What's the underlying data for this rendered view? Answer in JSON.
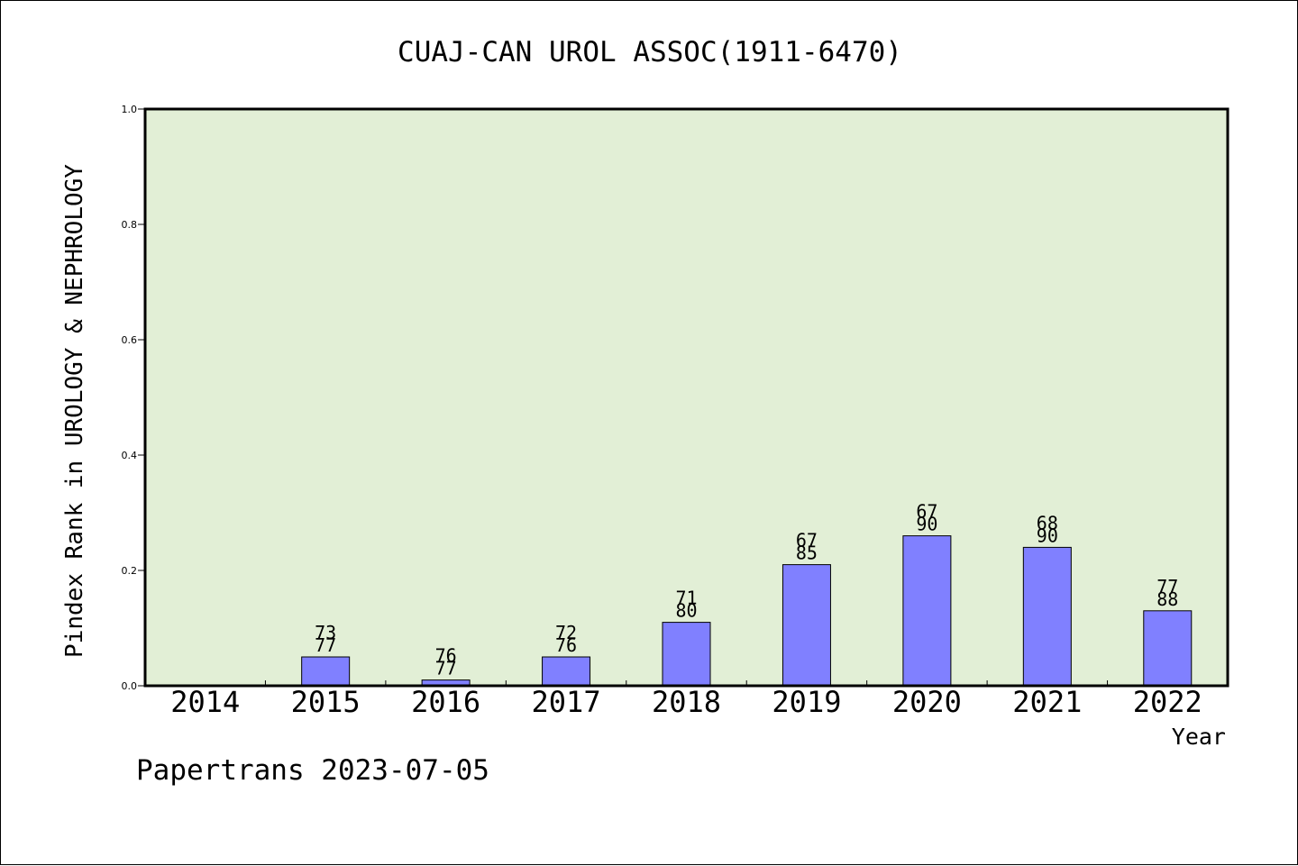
{
  "chart_data": {
    "type": "bar",
    "title": "CUAJ-CAN UROL ASSOC(1911-6470)",
    "xlabel": "Year",
    "ylabel": "Pindex Rank in UROLOGY & NEPHROLOGY",
    "ylim": [
      0,
      1.0
    ],
    "yticks": [
      "0.0",
      "0.2",
      "0.4",
      "0.6",
      "0.8",
      "1.0"
    ],
    "categories": [
      "2014",
      "2015",
      "2016",
      "2017",
      "2018",
      "2019",
      "2020",
      "2021",
      "2022"
    ],
    "values": [
      0,
      0.05,
      0.01,
      0.05,
      0.11,
      0.21,
      0.26,
      0.24,
      0.13
    ],
    "label_top": [
      "",
      "73",
      "76",
      "72",
      "71",
      "67",
      "67",
      "68",
      "77"
    ],
    "label_bottom": [
      "",
      "77",
      "77",
      "76",
      "80",
      "85",
      "90",
      "90",
      "88"
    ],
    "grid": false,
    "colors": {
      "plot_background": "#e2efd6",
      "bar_fill": "#8080ff",
      "axis": "#000000"
    }
  },
  "footer": {
    "credit": "Papertrans 2023-07-05"
  }
}
